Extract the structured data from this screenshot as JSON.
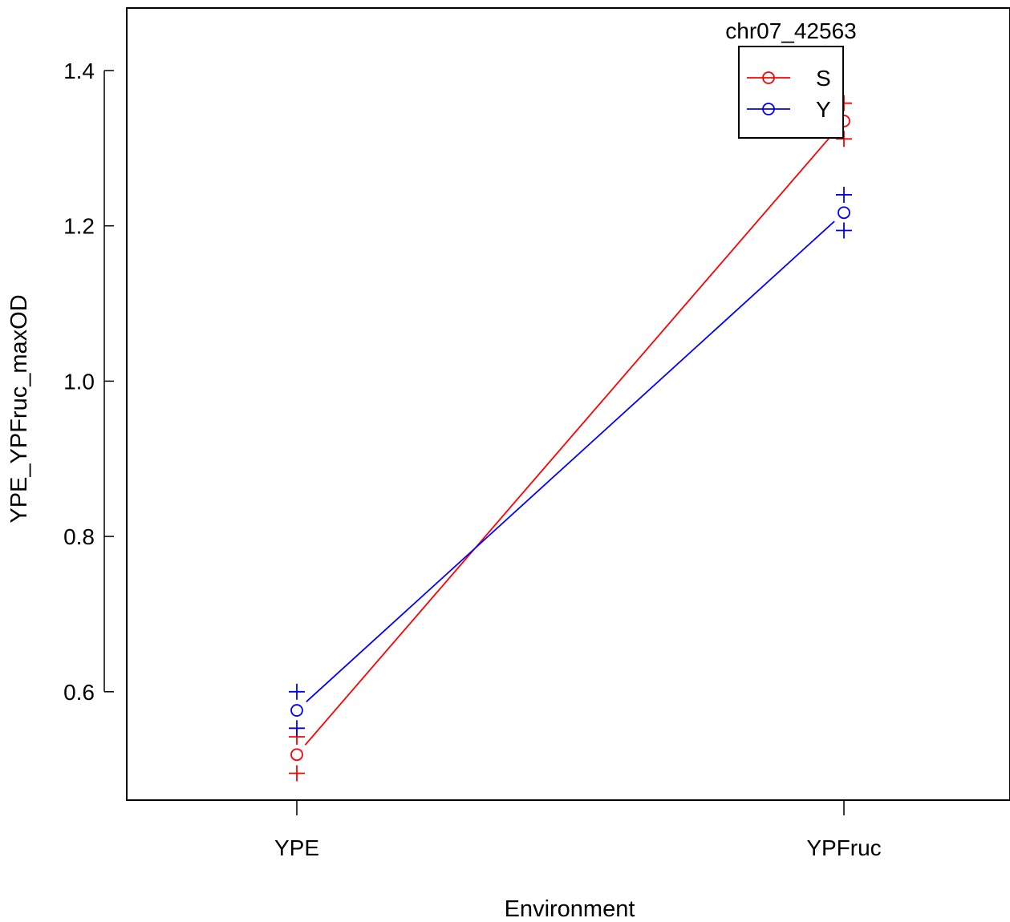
{
  "chart_data": {
    "type": "line",
    "title": "",
    "xlabel": "Environment",
    "ylabel": "YPE_YPFruc_maxOD",
    "categories": [
      "YPE",
      "YPFruc"
    ],
    "ylim": [
      0.46,
      1.47
    ],
    "yticks": [
      0.6,
      0.8,
      1.0,
      1.2,
      1.4
    ],
    "ytick_labels": [
      "0.6",
      "0.8",
      "1.0",
      "1.2",
      "1.4"
    ],
    "legend": {
      "title": "chr07_42563",
      "placement": "top-right"
    },
    "series": [
      {
        "name": "S",
        "color": "#ff0000",
        "values": [
          0.519,
          1.335
        ],
        "upper": [
          0.542,
          1.358
        ],
        "lower": [
          0.495,
          1.312
        ]
      },
      {
        "name": "Y",
        "color": "#0000ff",
        "values": [
          0.576,
          1.217
        ],
        "upper": [
          0.6,
          1.24
        ],
        "lower": [
          0.553,
          1.194
        ]
      }
    ]
  }
}
